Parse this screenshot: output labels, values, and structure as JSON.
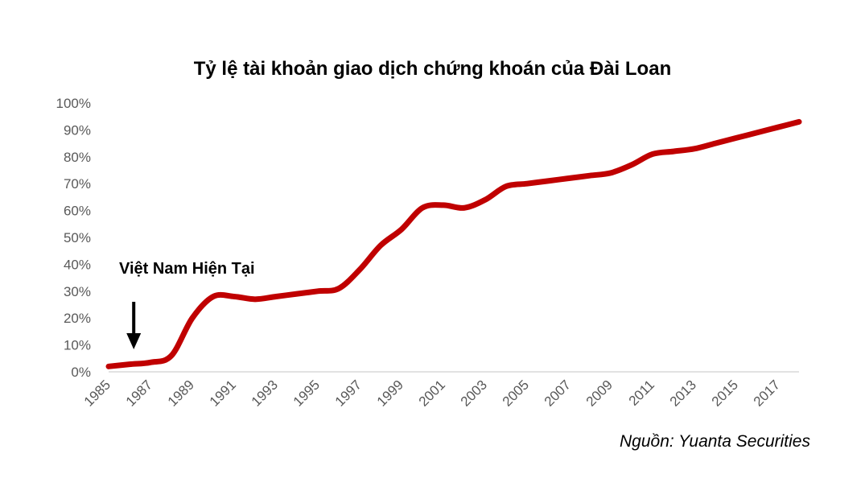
{
  "chart_data": {
    "type": "line",
    "title": "Tỷ lệ tài khoản giao dịch chứng khoán của Đài Loan",
    "xlabel": "",
    "ylabel": "",
    "ylim": [
      0,
      100
    ],
    "yticks": [
      "0%",
      "10%",
      "20%",
      "30%",
      "40%",
      "50%",
      "60%",
      "70%",
      "80%",
      "90%",
      "100%"
    ],
    "xticks": [
      "1985",
      "1987",
      "1989",
      "1991",
      "1993",
      "1995",
      "1997",
      "1999",
      "2001",
      "2003",
      "2005",
      "2007",
      "2009",
      "2011",
      "2013",
      "2015",
      "2017"
    ],
    "grid": false,
    "legend": "none",
    "series": [
      {
        "color": "#c00000",
        "x": [
          1985,
          1986,
          1987,
          1988,
          1989,
          1990,
          1991,
          1992,
          1993,
          1994,
          1995,
          1996,
          1997,
          1998,
          1999,
          2000,
          2001,
          2002,
          2003,
          2004,
          2005,
          2006,
          2007,
          2008,
          2009,
          2010,
          2011,
          2012,
          2013,
          2014,
          2015,
          2016,
          2017,
          2018
        ],
        "values": [
          2,
          2.8,
          3.5,
          6,
          20,
          28,
          28,
          27,
          28,
          29,
          30,
          31,
          38,
          47,
          53,
          61,
          62,
          61,
          64,
          69,
          70,
          71,
          72,
          73,
          74,
          77,
          81,
          82,
          83,
          85,
          87,
          89,
          91,
          93
        ]
      }
    ],
    "annotations": [
      {
        "text": "Việt Nam Hiện Tại",
        "x": 1986.2,
        "arrow": "down"
      }
    ]
  },
  "source": "Nguồn: Yuanta Securities"
}
